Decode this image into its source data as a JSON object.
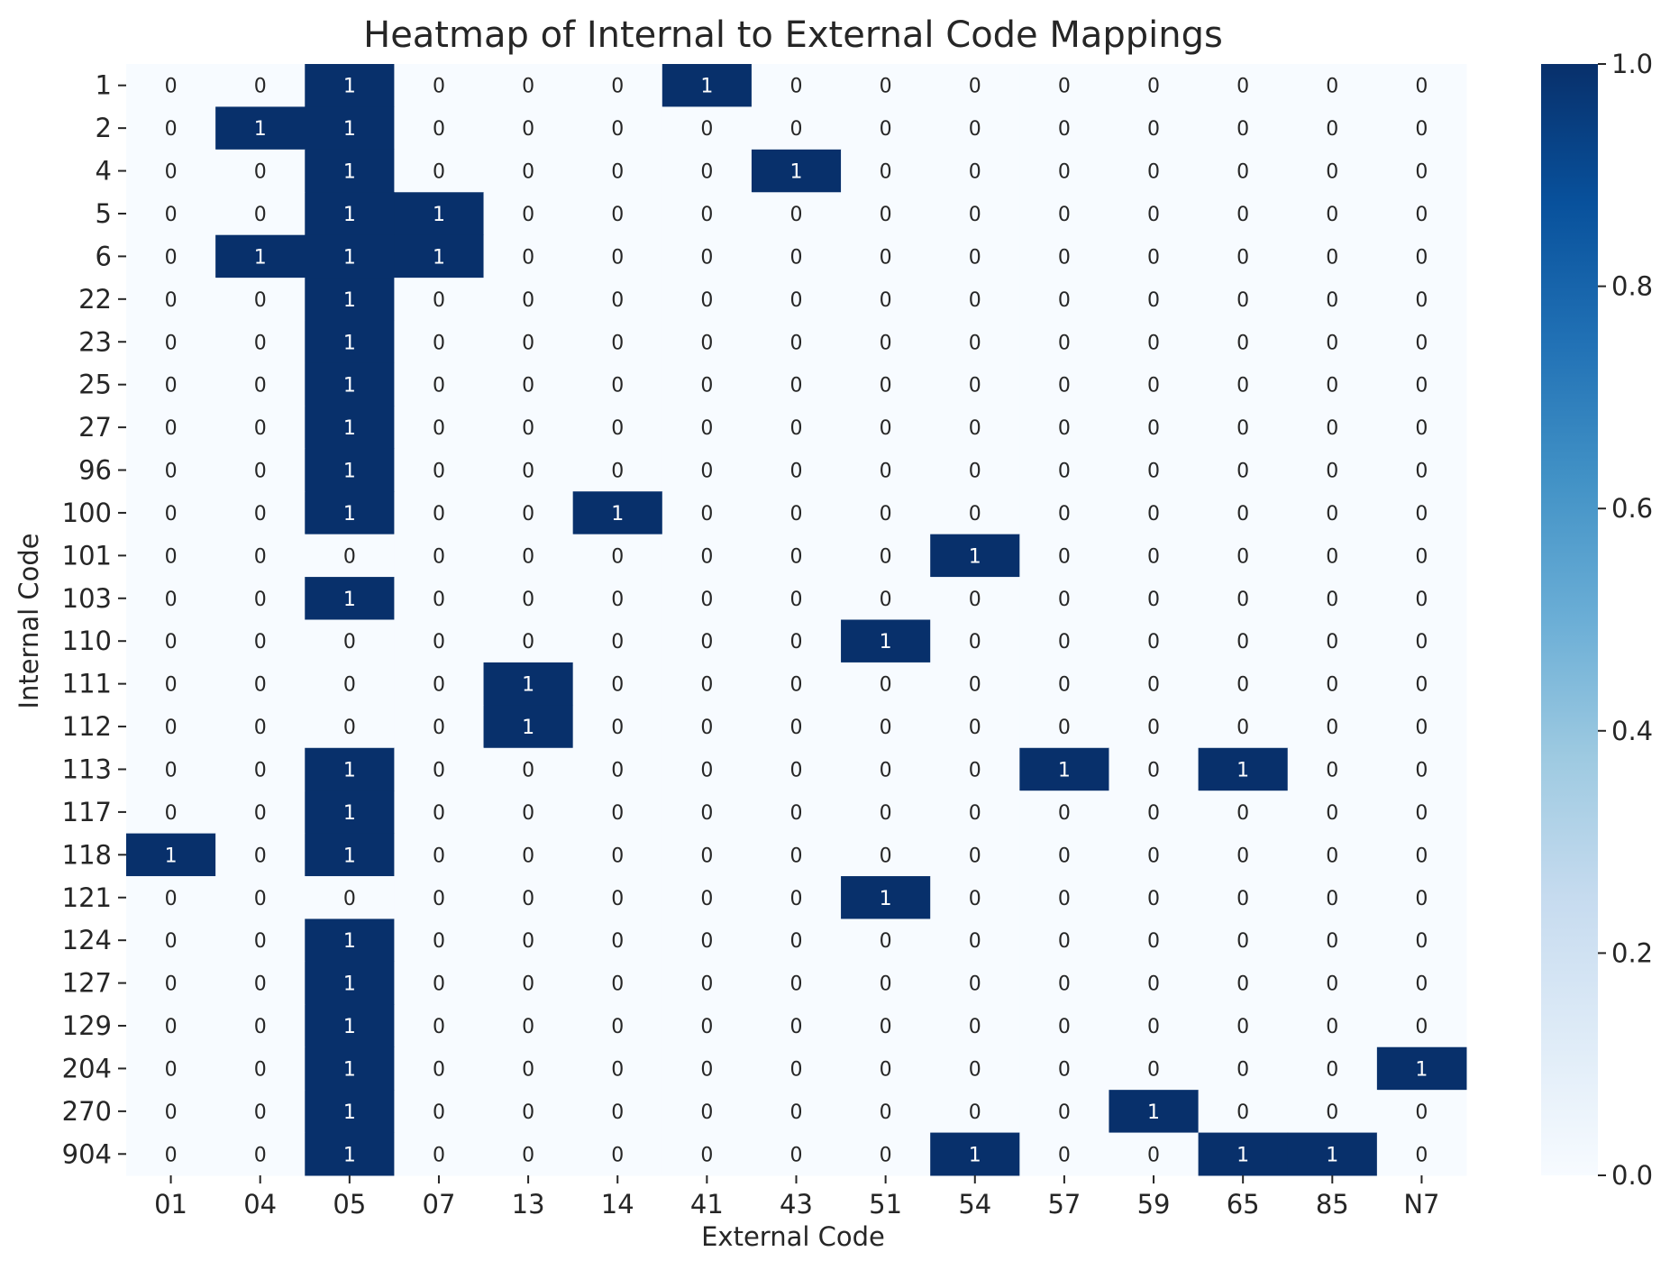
{
  "chart_data": {
    "type": "heatmap",
    "title": "Heatmap of Internal to External Code Mappings",
    "xlabel": "External Code",
    "ylabel": "Internal Code",
    "x_categories": [
      "01",
      "04",
      "05",
      "07",
      "13",
      "14",
      "41",
      "43",
      "51",
      "54",
      "57",
      "59",
      "65",
      "85",
      "N7"
    ],
    "y_categories": [
      "1",
      "2",
      "4",
      "5",
      "6",
      "22",
      "23",
      "25",
      "27",
      "96",
      "100",
      "101",
      "103",
      "110",
      "111",
      "112",
      "113",
      "117",
      "118",
      "121",
      "124",
      "127",
      "129",
      "204",
      "270",
      "904"
    ],
    "values": [
      [
        0,
        0,
        1,
        0,
        0,
        0,
        1,
        0,
        0,
        0,
        0,
        0,
        0,
        0,
        0
      ],
      [
        0,
        1,
        1,
        0,
        0,
        0,
        0,
        0,
        0,
        0,
        0,
        0,
        0,
        0,
        0
      ],
      [
        0,
        0,
        1,
        0,
        0,
        0,
        0,
        1,
        0,
        0,
        0,
        0,
        0,
        0,
        0
      ],
      [
        0,
        0,
        1,
        1,
        0,
        0,
        0,
        0,
        0,
        0,
        0,
        0,
        0,
        0,
        0
      ],
      [
        0,
        1,
        1,
        1,
        0,
        0,
        0,
        0,
        0,
        0,
        0,
        0,
        0,
        0,
        0
      ],
      [
        0,
        0,
        1,
        0,
        0,
        0,
        0,
        0,
        0,
        0,
        0,
        0,
        0,
        0,
        0
      ],
      [
        0,
        0,
        1,
        0,
        0,
        0,
        0,
        0,
        0,
        0,
        0,
        0,
        0,
        0,
        0
      ],
      [
        0,
        0,
        1,
        0,
        0,
        0,
        0,
        0,
        0,
        0,
        0,
        0,
        0,
        0,
        0
      ],
      [
        0,
        0,
        1,
        0,
        0,
        0,
        0,
        0,
        0,
        0,
        0,
        0,
        0,
        0,
        0
      ],
      [
        0,
        0,
        1,
        0,
        0,
        0,
        0,
        0,
        0,
        0,
        0,
        0,
        0,
        0,
        0
      ],
      [
        0,
        0,
        1,
        0,
        0,
        1,
        0,
        0,
        0,
        0,
        0,
        0,
        0,
        0,
        0
      ],
      [
        0,
        0,
        0,
        0,
        0,
        0,
        0,
        0,
        0,
        1,
        0,
        0,
        0,
        0,
        0
      ],
      [
        0,
        0,
        1,
        0,
        0,
        0,
        0,
        0,
        0,
        0,
        0,
        0,
        0,
        0,
        0
      ],
      [
        0,
        0,
        0,
        0,
        0,
        0,
        0,
        0,
        1,
        0,
        0,
        0,
        0,
        0,
        0
      ],
      [
        0,
        0,
        0,
        0,
        1,
        0,
        0,
        0,
        0,
        0,
        0,
        0,
        0,
        0,
        0
      ],
      [
        0,
        0,
        0,
        0,
        1,
        0,
        0,
        0,
        0,
        0,
        0,
        0,
        0,
        0,
        0
      ],
      [
        0,
        0,
        1,
        0,
        0,
        0,
        0,
        0,
        0,
        0,
        1,
        0,
        1,
        0,
        0
      ],
      [
        0,
        0,
        1,
        0,
        0,
        0,
        0,
        0,
        0,
        0,
        0,
        0,
        0,
        0,
        0
      ],
      [
        1,
        0,
        1,
        0,
        0,
        0,
        0,
        0,
        0,
        0,
        0,
        0,
        0,
        0,
        0
      ],
      [
        0,
        0,
        0,
        0,
        0,
        0,
        0,
        0,
        1,
        0,
        0,
        0,
        0,
        0,
        0
      ],
      [
        0,
        0,
        1,
        0,
        0,
        0,
        0,
        0,
        0,
        0,
        0,
        0,
        0,
        0,
        0
      ],
      [
        0,
        0,
        1,
        0,
        0,
        0,
        0,
        0,
        0,
        0,
        0,
        0,
        0,
        0,
        0
      ],
      [
        0,
        0,
        1,
        0,
        0,
        0,
        0,
        0,
        0,
        0,
        0,
        0,
        0,
        0,
        0
      ],
      [
        0,
        0,
        1,
        0,
        0,
        0,
        0,
        0,
        0,
        0,
        0,
        0,
        0,
        0,
        1
      ],
      [
        0,
        0,
        1,
        0,
        0,
        0,
        0,
        0,
        0,
        0,
        0,
        1,
        0,
        0,
        0
      ],
      [
        0,
        0,
        1,
        0,
        0,
        0,
        0,
        0,
        0,
        1,
        0,
        0,
        1,
        1,
        0
      ]
    ],
    "value_range": [
      0,
      1
    ],
    "colormap": "Blues",
    "color_low": "#f7fbff",
    "color_high": "#08306b",
    "annotations": true,
    "colorbar": {
      "ticks": [
        "0.0",
        "0.2",
        "0.4",
        "0.6",
        "0.8",
        "1.0"
      ]
    },
    "grid": false
  }
}
